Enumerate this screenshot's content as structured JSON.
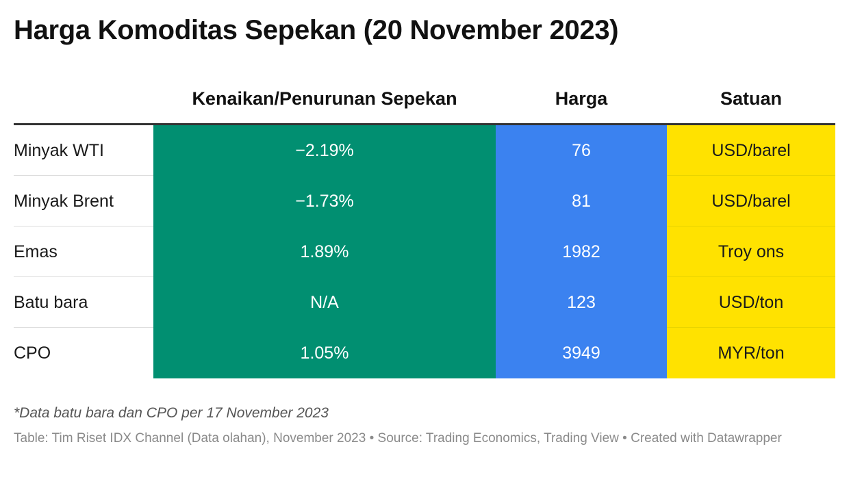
{
  "title": "Harga Komoditas Sepekan (20 November 2023)",
  "colors": {
    "change_bg": "#018f71",
    "price_bg": "#3b82f0",
    "unit_bg": "#ffe200",
    "header_rule": "#333333"
  },
  "chart_data": {
    "type": "table",
    "columns": [
      "",
      "Kenaikan/Penurunan Sepekan",
      "Harga",
      "Satuan"
    ],
    "rows": [
      {
        "name": "Minyak WTI",
        "change": "−2.19%",
        "price": "76",
        "unit": "USD/barel"
      },
      {
        "name": "Minyak Brent",
        "change": "−1.73%",
        "price": "81",
        "unit": "USD/barel"
      },
      {
        "name": "Emas",
        "change": "1.89%",
        "price": "1982",
        "unit": "Troy ons"
      },
      {
        "name": "Batu bara",
        "change": "N/A",
        "price": "123",
        "unit": "USD/ton"
      },
      {
        "name": "CPO",
        "change": "1.05%",
        "price": "3949",
        "unit": "MYR/ton"
      }
    ]
  },
  "footnote": "*Data batu bara dan CPO per 17 November 2023",
  "source": "Table: Tim Riset IDX Channel (Data olahan), November 2023 • Source: Trading Economics, Trading View • Created with Datawrapper"
}
